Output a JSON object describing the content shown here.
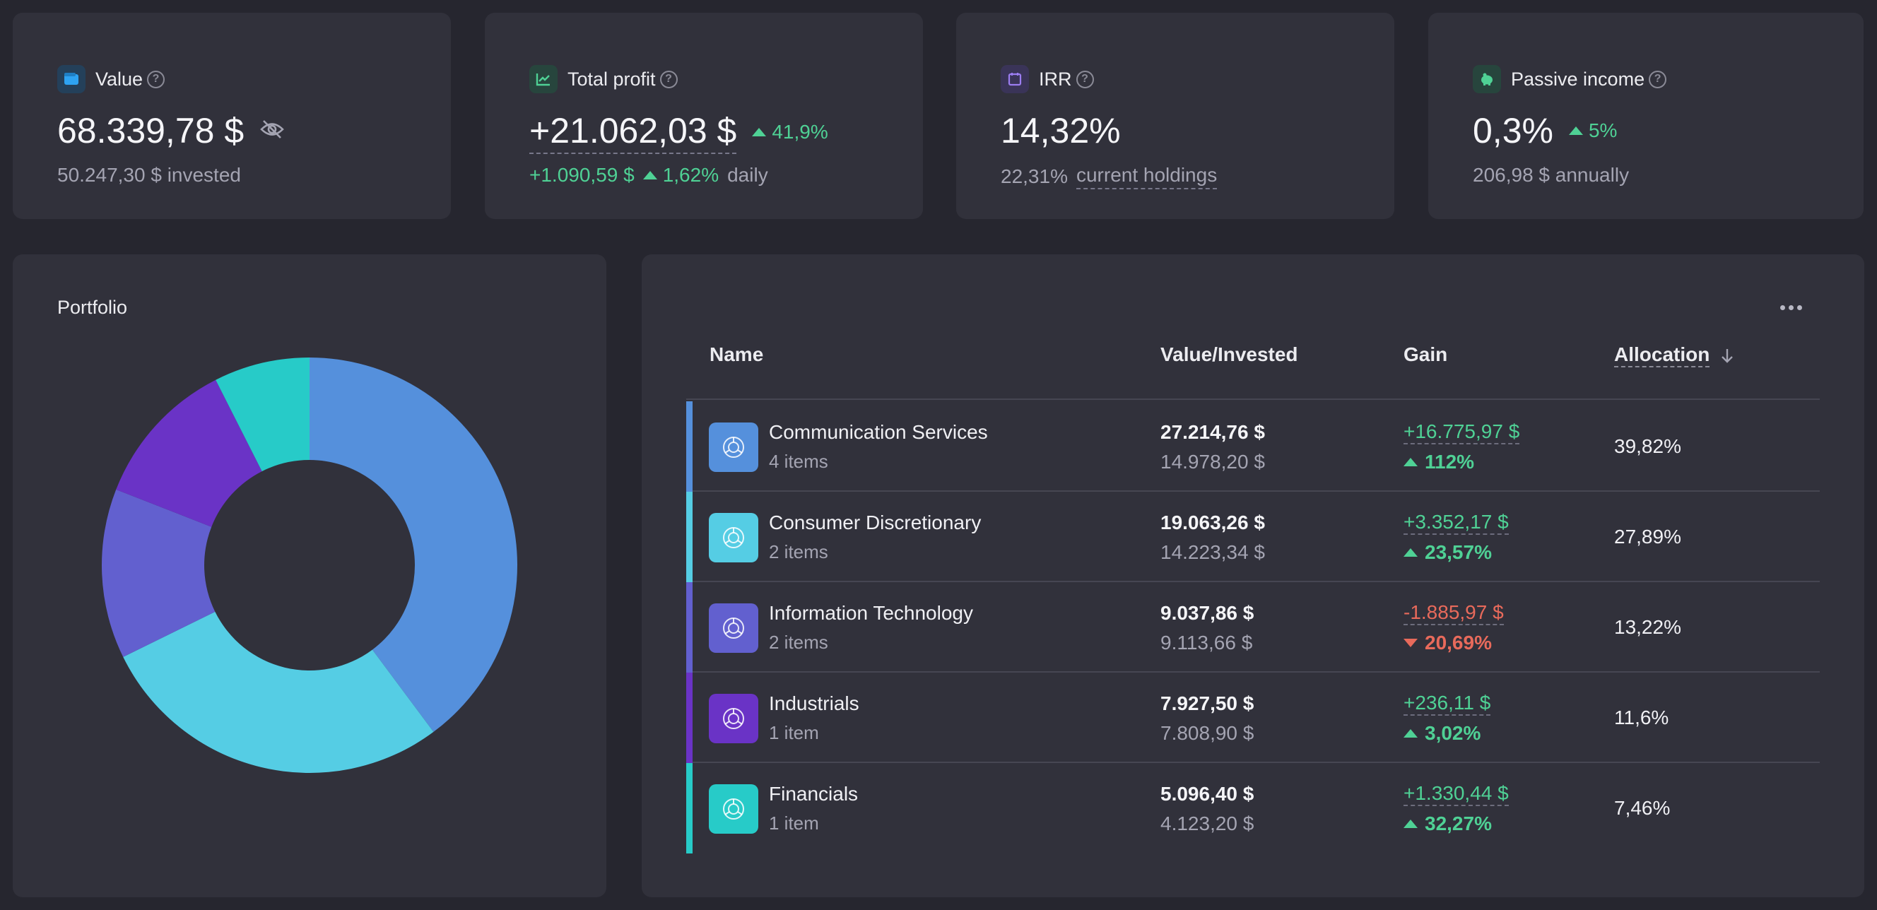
{
  "colors": {
    "accent_green": "#4fd195",
    "accent_red": "#e86a5b",
    "communication": "#5590dc",
    "consumer": "#55cde4",
    "it": "#6260cf",
    "industrials": "#6a33c6",
    "financials": "#27cbc8"
  },
  "stats": {
    "value": {
      "icon": "wallet-icon",
      "title": "Value",
      "main": "68.339,78 $",
      "sub": "50.247,30 $ invested"
    },
    "profit": {
      "icon": "chart-line-icon",
      "title": "Total profit",
      "main": "+21.062,03 $",
      "delta": "41,9%",
      "daily_amount": "+1.090,59 $",
      "daily_pct": "1,62%",
      "daily_label": "daily"
    },
    "irr": {
      "icon": "calendar-icon",
      "title": "IRR",
      "main": "14,32%",
      "sub_value": "22,31%",
      "sub_link": "current holdings"
    },
    "passive": {
      "icon": "piggy-bank-icon",
      "title": "Passive income",
      "main": "0,3%",
      "delta": "5%",
      "sub": "206,98 $ annually"
    }
  },
  "portfolio": {
    "title": "Portfolio"
  },
  "chart_data": {
    "type": "pie",
    "donut": true,
    "categories": [
      "Communication Services",
      "Consumer Discretionary",
      "Information Technology",
      "Industrials",
      "Financials"
    ],
    "values": [
      39.82,
      27.89,
      13.22,
      11.6,
      7.46
    ],
    "colors": [
      "#5590dc",
      "#55cde4",
      "#6260cf",
      "#6a33c6",
      "#27cbc8"
    ],
    "title": "",
    "legend": "none"
  },
  "table": {
    "headers": {
      "name": "Name",
      "value": "Value/Invested",
      "gain": "Gain",
      "allocation": "Allocation"
    },
    "rows": [
      {
        "name": "Communication Services",
        "count": "4 items",
        "value": "27.214,76 $",
        "invested": "14.978,20 $",
        "gain": "+16.775,97 $",
        "gain_pct": "112%",
        "allocation": "39,82%"
      },
      {
        "name": "Consumer Discretionary",
        "count": "2 items",
        "value": "19.063,26 $",
        "invested": "14.223,34 $",
        "gain": "+3.352,17 $",
        "gain_pct": "23,57%",
        "allocation": "27,89%"
      },
      {
        "name": "Information Technology",
        "count": "2 items",
        "value": "9.037,86 $",
        "invested": "9.113,66 $",
        "gain": "-1.885,97 $",
        "gain_pct": "20,69%",
        "allocation": "13,22%"
      },
      {
        "name": "Industrials",
        "count": "1 item",
        "value": "7.927,50 $",
        "invested": "7.808,90 $",
        "gain": "+236,11 $",
        "gain_pct": "3,02%",
        "allocation": "11,6%"
      },
      {
        "name": "Financials",
        "count": "1 item",
        "value": "5.096,40 $",
        "invested": "4.123,20 $",
        "gain": "+1.330,44 $",
        "gain_pct": "32,27%",
        "allocation": "7,46%"
      }
    ]
  }
}
